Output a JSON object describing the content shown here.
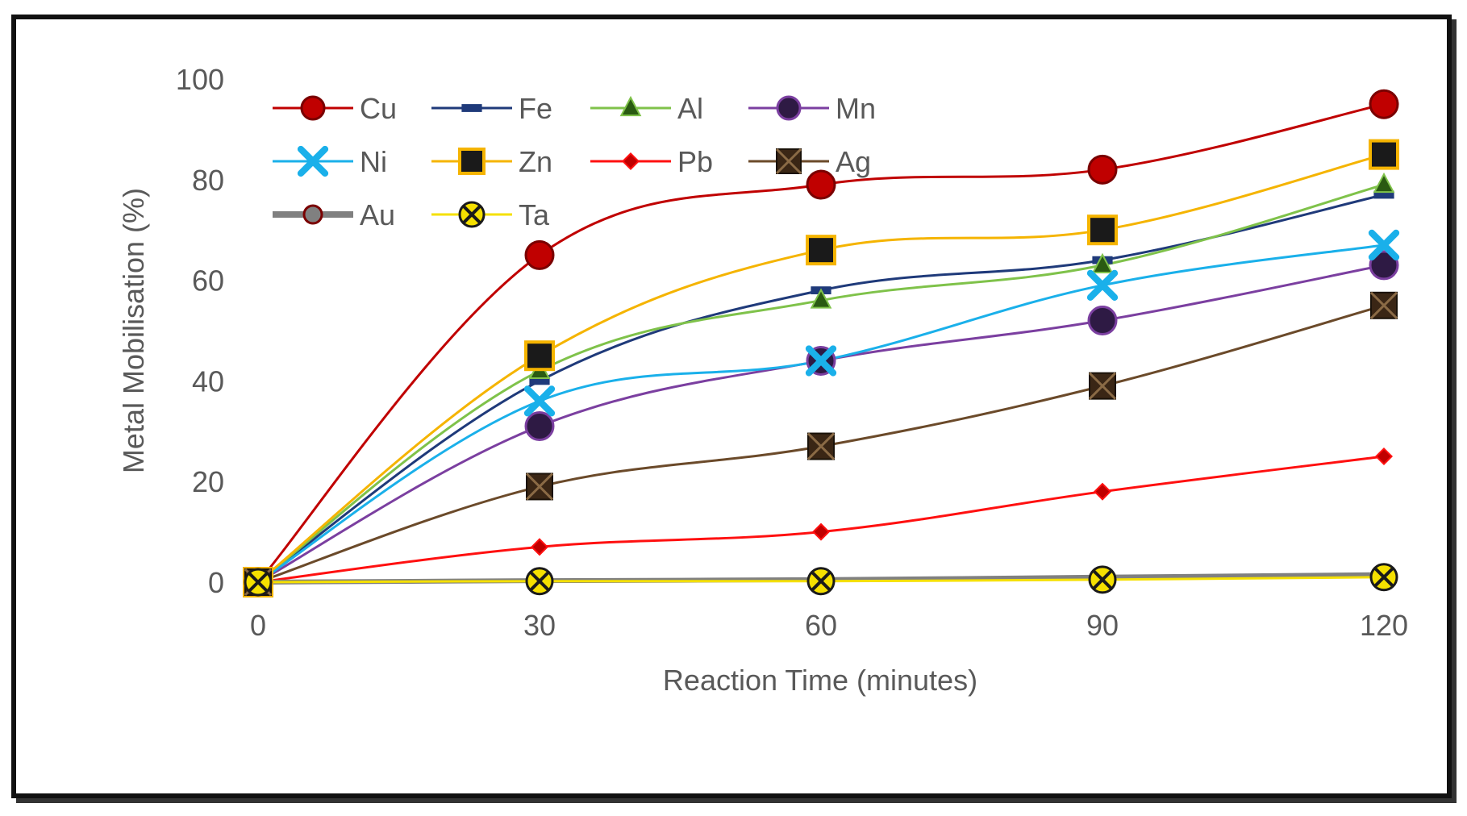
{
  "chart_data": {
    "type": "line",
    "title": "",
    "xlabel": "Reaction Time (minutes)",
    "ylabel": "Metal Mobilisation (%)",
    "x": [
      0,
      30,
      60,
      90,
      120
    ],
    "x_tick_labels": [
      "0",
      "30",
      "60",
      "90",
      "120"
    ],
    "y_tick_labels": [
      "0",
      "20",
      "40",
      "60",
      "80",
      "100"
    ],
    "xlim": [
      0,
      120
    ],
    "ylim": [
      0,
      100
    ],
    "grid": false,
    "legend_position": "top-left",
    "series": [
      {
        "name": "Cu",
        "values": [
          0,
          65,
          79,
          82,
          95
        ],
        "color": "#c00000",
        "marker": "circle",
        "marker_fill": "#c00000"
      },
      {
        "name": "Fe",
        "values": [
          0,
          40,
          58,
          64,
          77
        ],
        "color": "#1f3a7a",
        "marker": "dash",
        "marker_fill": "#1f3a7a"
      },
      {
        "name": "Al",
        "values": [
          0,
          42,
          56,
          63,
          79
        ],
        "color": "#7fc24a",
        "marker": "triangle",
        "marker_fill": "#2a5a12"
      },
      {
        "name": "Mn",
        "values": [
          0,
          31,
          44,
          52,
          63
        ],
        "color": "#7b3fa0",
        "marker": "circle",
        "marker_fill": "#2e1a44"
      },
      {
        "name": "Ni",
        "values": [
          0,
          36,
          44,
          59,
          67
        ],
        "color": "#1ab0ea",
        "marker": "x",
        "marker_fill": "#1ab0ea"
      },
      {
        "name": "Zn",
        "values": [
          0,
          45,
          66,
          70,
          85
        ],
        "color": "#f5b400",
        "marker": "square",
        "marker_fill": "#1a1a1a"
      },
      {
        "name": "Pb",
        "values": [
          0,
          7,
          10,
          18,
          25
        ],
        "color": "#ff1010",
        "marker": "diamond",
        "marker_fill": "#c00000"
      },
      {
        "name": "Ag",
        "values": [
          0,
          19,
          27,
          39,
          55
        ],
        "color": "#6b4a2a",
        "marker": "square-x",
        "marker_fill": "#3a2615"
      },
      {
        "name": "Au",
        "values": [
          0,
          0.3,
          0.5,
          1,
          1.5
        ],
        "color": "#808080",
        "marker": "circle",
        "marker_fill": "#808080"
      },
      {
        "name": "Ta",
        "values": [
          0,
          0.2,
          0.2,
          0.5,
          1
        ],
        "color": "#f5e000",
        "marker": "circle-x",
        "marker_fill": "#f5e000"
      }
    ]
  }
}
